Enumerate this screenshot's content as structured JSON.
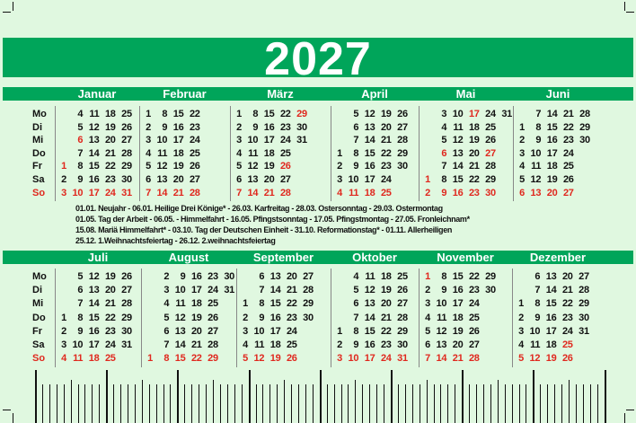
{
  "year": "2027",
  "colors": {
    "green": "#00a55a",
    "background": "#e0f8e0",
    "holiday_red": "#e0281e"
  },
  "weekdays": [
    "Mo",
    "Di",
    "Mi",
    "Do",
    "Fr",
    "Sa",
    "So"
  ],
  "months": [
    {
      "name": "Januar",
      "weeks": [
        [
          "",
          "",
          "",
          "",
          "1",
          "2",
          "3"
        ],
        [
          "4",
          "5",
          "6",
          "7",
          "8",
          "9",
          "10"
        ],
        [
          "11",
          "12",
          "13",
          "14",
          "15",
          "16",
          "17"
        ],
        [
          "18",
          "19",
          "20",
          "21",
          "22",
          "23",
          "24"
        ],
        [
          "25",
          "26",
          "27",
          "28",
          "29",
          "30",
          "31"
        ]
      ],
      "red": [
        "1",
        "6"
      ]
    },
    {
      "name": "Februar",
      "weeks": [
        [
          "1",
          "2",
          "3",
          "4",
          "5",
          "6",
          "7"
        ],
        [
          "8",
          "9",
          "10",
          "11",
          "12",
          "13",
          "14"
        ],
        [
          "15",
          "16",
          "17",
          "18",
          "19",
          "20",
          "21"
        ],
        [
          "22",
          "23",
          "24",
          "25",
          "26",
          "27",
          "28"
        ]
      ],
      "red": []
    },
    {
      "name": "März",
      "weeks": [
        [
          "1",
          "2",
          "3",
          "4",
          "5",
          "6",
          "7"
        ],
        [
          "8",
          "9",
          "10",
          "11",
          "12",
          "13",
          "14"
        ],
        [
          "15",
          "16",
          "17",
          "18",
          "19",
          "20",
          "21"
        ],
        [
          "22",
          "23",
          "24",
          "25",
          "26",
          "27",
          "28"
        ],
        [
          "29",
          "30",
          "31",
          "",
          "",
          "",
          ""
        ]
      ],
      "red": [
        "26",
        "29"
      ]
    },
    {
      "name": "April",
      "weeks": [
        [
          "",
          "",
          "",
          "1",
          "2",
          "3",
          "4"
        ],
        [
          "5",
          "6",
          "7",
          "8",
          "9",
          "10",
          "11"
        ],
        [
          "12",
          "13",
          "14",
          "15",
          "16",
          "17",
          "18"
        ],
        [
          "19",
          "20",
          "21",
          "22",
          "23",
          "24",
          "25"
        ],
        [
          "26",
          "27",
          "28",
          "29",
          "30",
          "",
          ""
        ]
      ],
      "red": []
    },
    {
      "name": "Mai",
      "weeks": [
        [
          "",
          "",
          "",
          "",
          "",
          "1",
          "2"
        ],
        [
          "3",
          "4",
          "5",
          "6",
          "7",
          "8",
          "9"
        ],
        [
          "10",
          "11",
          "12",
          "13",
          "14",
          "15",
          "16"
        ],
        [
          "17",
          "18",
          "19",
          "20",
          "21",
          "22",
          "23"
        ],
        [
          "24",
          "25",
          "26",
          "27",
          "28",
          "29",
          "30"
        ],
        [
          "31",
          "",
          "",
          "",
          "",
          "",
          ""
        ]
      ],
      "red": [
        "1",
        "6",
        "17",
        "27"
      ]
    },
    {
      "name": "Juni",
      "weeks": [
        [
          "",
          "1",
          "2",
          "3",
          "4",
          "5",
          "6"
        ],
        [
          "7",
          "8",
          "9",
          "10",
          "11",
          "12",
          "13"
        ],
        [
          "14",
          "15",
          "16",
          "17",
          "18",
          "19",
          "20"
        ],
        [
          "21",
          "22",
          "23",
          "24",
          "25",
          "26",
          "27"
        ],
        [
          "28",
          "29",
          "30",
          "",
          "",
          "",
          ""
        ]
      ],
      "red": []
    },
    {
      "name": "Juli",
      "weeks": [
        [
          "",
          "",
          "",
          "1",
          "2",
          "3",
          "4"
        ],
        [
          "5",
          "6",
          "7",
          "8",
          "9",
          "10",
          "11"
        ],
        [
          "12",
          "13",
          "14",
          "15",
          "16",
          "17",
          "18"
        ],
        [
          "19",
          "20",
          "21",
          "22",
          "23",
          "24",
          "25"
        ],
        [
          "26",
          "27",
          "28",
          "29",
          "30",
          "31",
          ""
        ]
      ],
      "red": []
    },
    {
      "name": "August",
      "weeks": [
        [
          "",
          "",
          "",
          "",
          "",
          "",
          "1"
        ],
        [
          "2",
          "3",
          "4",
          "5",
          "6",
          "7",
          "8"
        ],
        [
          "9",
          "10",
          "11",
          "12",
          "13",
          "14",
          "15"
        ],
        [
          "16",
          "17",
          "18",
          "19",
          "20",
          "21",
          "22"
        ],
        [
          "23",
          "24",
          "25",
          "26",
          "27",
          "28",
          "29"
        ],
        [
          "30",
          "31",
          "",
          "",
          "",
          "",
          ""
        ]
      ],
      "red": []
    },
    {
      "name": "September",
      "weeks": [
        [
          "",
          "",
          "1",
          "2",
          "3",
          "4",
          "5"
        ],
        [
          "6",
          "7",
          "8",
          "9",
          "10",
          "11",
          "12"
        ],
        [
          "13",
          "14",
          "15",
          "16",
          "17",
          "18",
          "19"
        ],
        [
          "20",
          "21",
          "22",
          "23",
          "24",
          "25",
          "26"
        ],
        [
          "27",
          "28",
          "29",
          "30",
          "",
          "",
          ""
        ]
      ],
      "red": []
    },
    {
      "name": "Oktober",
      "weeks": [
        [
          "",
          "",
          "",
          "",
          "1",
          "2",
          "3"
        ],
        [
          "4",
          "5",
          "6",
          "7",
          "8",
          "9",
          "10"
        ],
        [
          "11",
          "12",
          "13",
          "14",
          "15",
          "16",
          "17"
        ],
        [
          "18",
          "19",
          "20",
          "21",
          "22",
          "23",
          "24"
        ],
        [
          "25",
          "26",
          "27",
          "28",
          "29",
          "30",
          "31"
        ]
      ],
      "red": []
    },
    {
      "name": "November",
      "weeks": [
        [
          "1",
          "2",
          "3",
          "4",
          "5",
          "6",
          "7"
        ],
        [
          "8",
          "9",
          "10",
          "11",
          "12",
          "13",
          "14"
        ],
        [
          "15",
          "16",
          "17",
          "18",
          "19",
          "20",
          "21"
        ],
        [
          "22",
          "23",
          "24",
          "25",
          "26",
          "27",
          "28"
        ],
        [
          "29",
          "30",
          "",
          "",
          "",
          "",
          ""
        ]
      ],
      "red": [
        "1"
      ]
    },
    {
      "name": "Dezember",
      "weeks": [
        [
          "",
          "",
          "1",
          "2",
          "3",
          "4",
          "5"
        ],
        [
          "6",
          "7",
          "8",
          "9",
          "10",
          "11",
          "12"
        ],
        [
          "13",
          "14",
          "15",
          "16",
          "17",
          "18",
          "19"
        ],
        [
          "20",
          "21",
          "22",
          "23",
          "24",
          "25",
          "26"
        ],
        [
          "27",
          "28",
          "29",
          "30",
          "31",
          "",
          ""
        ]
      ],
      "red": [
        "25"
      ]
    }
  ],
  "holidays": [
    "01.01. Neujahr - 06.01. Heilige Drei Könige* - 26.03. Karfreitag - 28.03. Ostersonntag - 29.03. Ostermontag",
    "01.05. Tag der Arbeit - 06.05. - Himmelfahrt - 16.05. Pfingstsonntag - 17.05. Pfingstmontag - 27.05. Fronleichnam*",
    "15.08. Mariä Himmelfahrt* - 03.10. Tag der Deutschen Einheit - 31.10. Reformationstag* - 01.11. Allerheiligen",
    "25.12. 1.Weihnachtsfeiertag - 26.12. 2.weihnachtsfeiertag"
  ]
}
